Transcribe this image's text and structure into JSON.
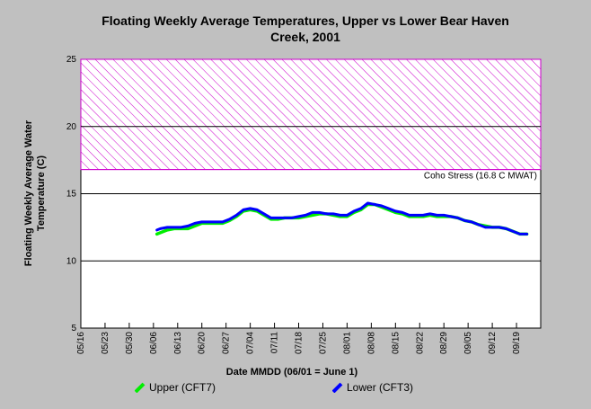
{
  "chart_data": {
    "type": "line",
    "title": "Floating Weekly Average Temperatures, Upper vs Lower Bear Haven Creek, 2001",
    "title_lines": [
      "Floating Weekly Average Temperatures, Upper vs Lower Bear Haven",
      "Creek, 2001"
    ],
    "xlabel": "Date MMDD (06/01 = June 1)",
    "ylabel": "Floating Weekly Average Water Temperature (C)",
    "ylabel_lines": [
      "Floating Weekly Average Water",
      "Temperature (C)"
    ],
    "ylim": [
      5,
      25
    ],
    "yticks": [
      5,
      10,
      15,
      20,
      25
    ],
    "xlim": [
      "05/16",
      "09/26"
    ],
    "xticks": [
      "05/16",
      "05/23",
      "05/30",
      "06/06",
      "06/13",
      "06/20",
      "06/27",
      "07/04",
      "07/11",
      "07/18",
      "07/25",
      "08/01",
      "08/08",
      "08/15",
      "08/22",
      "08/29",
      "09/05",
      "09/12",
      "09/19"
    ],
    "grid": "horizontal",
    "threshold": {
      "label": "Coho Stress (16.8 C MWAT)",
      "value": 16.8,
      "upper": 25,
      "color": "#cc00cc"
    },
    "x": [
      "06/07",
      "06/08",
      "06/10",
      "06/12",
      "06/14",
      "06/16",
      "06/18",
      "06/20",
      "06/22",
      "06/24",
      "06/26",
      "06/28",
      "06/30",
      "07/02",
      "07/04",
      "07/06",
      "07/08",
      "07/10",
      "07/12",
      "07/14",
      "07/16",
      "07/18",
      "07/20",
      "07/22",
      "07/24",
      "07/26",
      "07/28",
      "07/30",
      "08/01",
      "08/03",
      "08/05",
      "08/07",
      "08/09",
      "08/11",
      "08/13",
      "08/15",
      "08/17",
      "08/19",
      "08/21",
      "08/23",
      "08/25",
      "08/27",
      "08/29",
      "08/31",
      "09/02",
      "09/04",
      "09/06",
      "09/08",
      "09/10",
      "09/12",
      "09/14",
      "09/16",
      "09/18",
      "09/20",
      "09/22"
    ],
    "series": [
      {
        "name": "Upper (CFT7)",
        "color": "#00ee00",
        "values": [
          12.0,
          12.1,
          12.3,
          12.4,
          12.4,
          12.4,
          12.6,
          12.8,
          12.8,
          12.8,
          12.8,
          13.0,
          13.3,
          13.7,
          13.8,
          13.7,
          13.4,
          13.1,
          13.1,
          13.2,
          13.2,
          13.2,
          13.3,
          13.4,
          13.5,
          13.5,
          13.4,
          13.3,
          13.3,
          13.6,
          13.8,
          14.2,
          14.2,
          14.0,
          13.8,
          13.6,
          13.5,
          13.3,
          13.3,
          13.3,
          13.4,
          13.3,
          13.3,
          13.3,
          13.2,
          13.0,
          12.9,
          12.7,
          12.6,
          12.5,
          12.5,
          12.4,
          12.2,
          12.0,
          12.0
        ]
      },
      {
        "name": "Lower (CFT3)",
        "color": "#0000ff",
        "values": [
          12.3,
          12.4,
          12.5,
          12.5,
          12.5,
          12.6,
          12.8,
          12.9,
          12.9,
          12.9,
          12.9,
          13.1,
          13.4,
          13.8,
          13.9,
          13.8,
          13.5,
          13.2,
          13.2,
          13.2,
          13.2,
          13.3,
          13.4,
          13.6,
          13.6,
          13.5,
          13.5,
          13.4,
          13.4,
          13.7,
          13.9,
          14.3,
          14.2,
          14.1,
          13.9,
          13.7,
          13.6,
          13.4,
          13.4,
          13.4,
          13.5,
          13.4,
          13.4,
          13.3,
          13.2,
          13.0,
          12.9,
          12.7,
          12.5,
          12.5,
          12.5,
          12.4,
          12.2,
          12.0,
          12.0
        ]
      }
    ],
    "legend": "bottom"
  }
}
